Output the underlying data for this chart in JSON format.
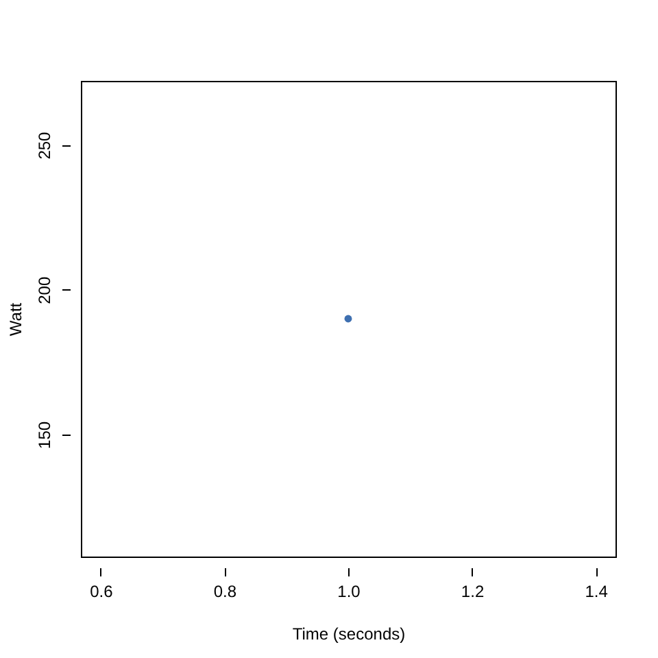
{
  "chart_data": {
    "type": "scatter",
    "xlabel": "Time (seconds)",
    "ylabel": "Watt",
    "x": [
      1.0
    ],
    "series": [
      {
        "color": "#3e6fb0",
        "values": [
          190
        ]
      }
    ],
    "xlim": [
      0.568,
      1.432
    ],
    "xticks": [
      0.6,
      0.8,
      {
        "value": 1,
        "label": "1.0"
      },
      1.2,
      1.4
    ],
    "ylim": [
      107.84,
      272.16
    ],
    "yticks": [
      150,
      200,
      250
    ],
    "grid": false,
    "marker": "circle"
  }
}
